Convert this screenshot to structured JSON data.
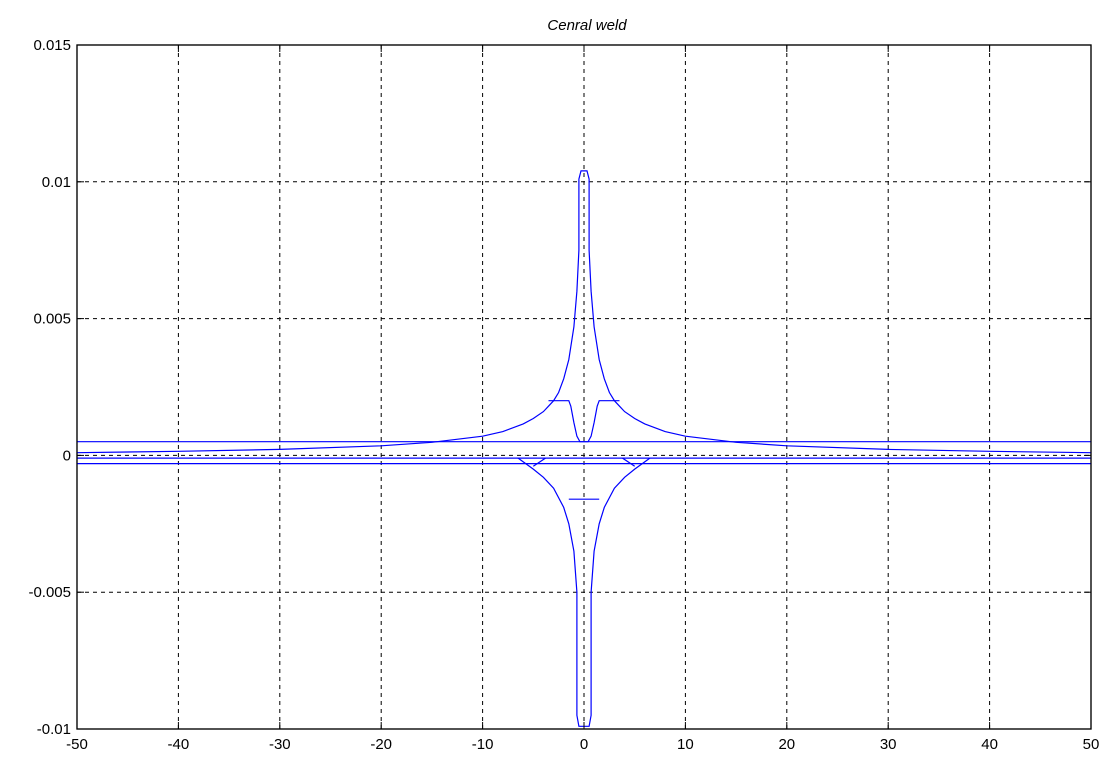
{
  "chart_data": {
    "type": "line",
    "title": "Cenral weld",
    "xlabel": "",
    "ylabel": "",
    "xlim": [
      -50,
      50
    ],
    "ylim": [
      -0.01,
      0.015
    ],
    "grid": true,
    "line_color": "#0000ff",
    "x_ticks": [
      -50,
      -40,
      -30,
      -20,
      -10,
      0,
      10,
      20,
      30,
      40,
      50
    ],
    "x_tick_labels": [
      "-50",
      "-40",
      "-30",
      "-20",
      "-10",
      "0",
      "10",
      "20",
      "30",
      "40",
      "50"
    ],
    "y_ticks": [
      -0.01,
      -0.005,
      0,
      0.005,
      0.01,
      0.015
    ],
    "y_tick_labels": [
      "-0.01",
      "-0.005",
      "0",
      "0.005",
      "0.01",
      "0.015"
    ],
    "series": [
      {
        "values_x": [
          -50,
          -40,
          -30,
          -20,
          -15,
          -10,
          -8,
          -6,
          -5,
          -4,
          -3.5,
          -3,
          -2.5,
          -2,
          -1.5,
          -1,
          -0.7,
          -0.5,
          -0.5,
          -0.3,
          0,
          0.3,
          0.5,
          0.5,
          0.7,
          1,
          1.5,
          2,
          2.5,
          3,
          3.5,
          4,
          5,
          6,
          8,
          10,
          15,
          20,
          30,
          40,
          50
        ],
        "values_y": [
          0.0001,
          0.00015,
          0.00022,
          0.00035,
          0.00048,
          0.0007,
          0.00087,
          0.00115,
          0.00135,
          0.0016,
          0.0018,
          0.002,
          0.0023,
          0.0028,
          0.0035,
          0.0047,
          0.006,
          0.0075,
          0.0101,
          0.0104,
          0.0104,
          0.0104,
          0.0101,
          0.0075,
          0.006,
          0.0047,
          0.0035,
          0.0028,
          0.0023,
          0.002,
          0.0018,
          0.0016,
          0.00135,
          0.00115,
          0.00087,
          0.0007,
          0.00048,
          0.00035,
          0.00022,
          0.00015,
          0.0001
        ]
      },
      {
        "values_x": [
          -3.5,
          -1.5,
          -1.3,
          -1.0,
          -0.7,
          -0.4,
          0,
          0.4,
          0.7,
          1.0,
          1.3,
          1.5,
          3.5
        ],
        "values_y": [
          0.002,
          0.002,
          0.0018,
          0.0012,
          0.0007,
          0.0005,
          0.0005,
          0.0005,
          0.0007,
          0.0012,
          0.0018,
          0.002,
          0.002
        ]
      },
      {
        "values_x": [
          -50,
          50
        ],
        "values_y": [
          0.0005,
          0.0005
        ]
      },
      {
        "values_x": [
          -50,
          50
        ],
        "values_y": [
          -0.0001,
          -0.0001
        ]
      },
      {
        "values_x": [
          -50,
          50
        ],
        "values_y": [
          -0.0003,
          -0.0003
        ]
      },
      {
        "values_x": [
          -6.5,
          -5,
          -4,
          -3,
          -2,
          -1.5,
          -1,
          -0.7,
          -0.7,
          -0.5,
          0,
          0.5,
          0.7,
          0.7,
          1,
          1.5,
          2,
          3,
          4,
          5,
          6.5
        ],
        "values_y": [
          -0.0001,
          -0.0005,
          -0.0008,
          -0.0012,
          -0.0019,
          -0.0025,
          -0.0035,
          -0.005,
          -0.0095,
          -0.0099,
          -0.0099,
          -0.0099,
          -0.0095,
          -0.005,
          -0.0035,
          -0.0025,
          -0.0019,
          -0.0012,
          -0.0008,
          -0.0005,
          -0.0001
        ]
      },
      {
        "values_x": [
          -1.5,
          1.5
        ],
        "values_y": [
          -0.0016,
          -0.0016
        ]
      },
      {
        "values_x": [
          -5,
          -3.8
        ],
        "values_y": [
          -0.0004,
          -0.0001
        ]
      },
      {
        "values_x": [
          3.8,
          5
        ],
        "values_y": [
          -0.0001,
          -0.0004
        ]
      }
    ]
  }
}
